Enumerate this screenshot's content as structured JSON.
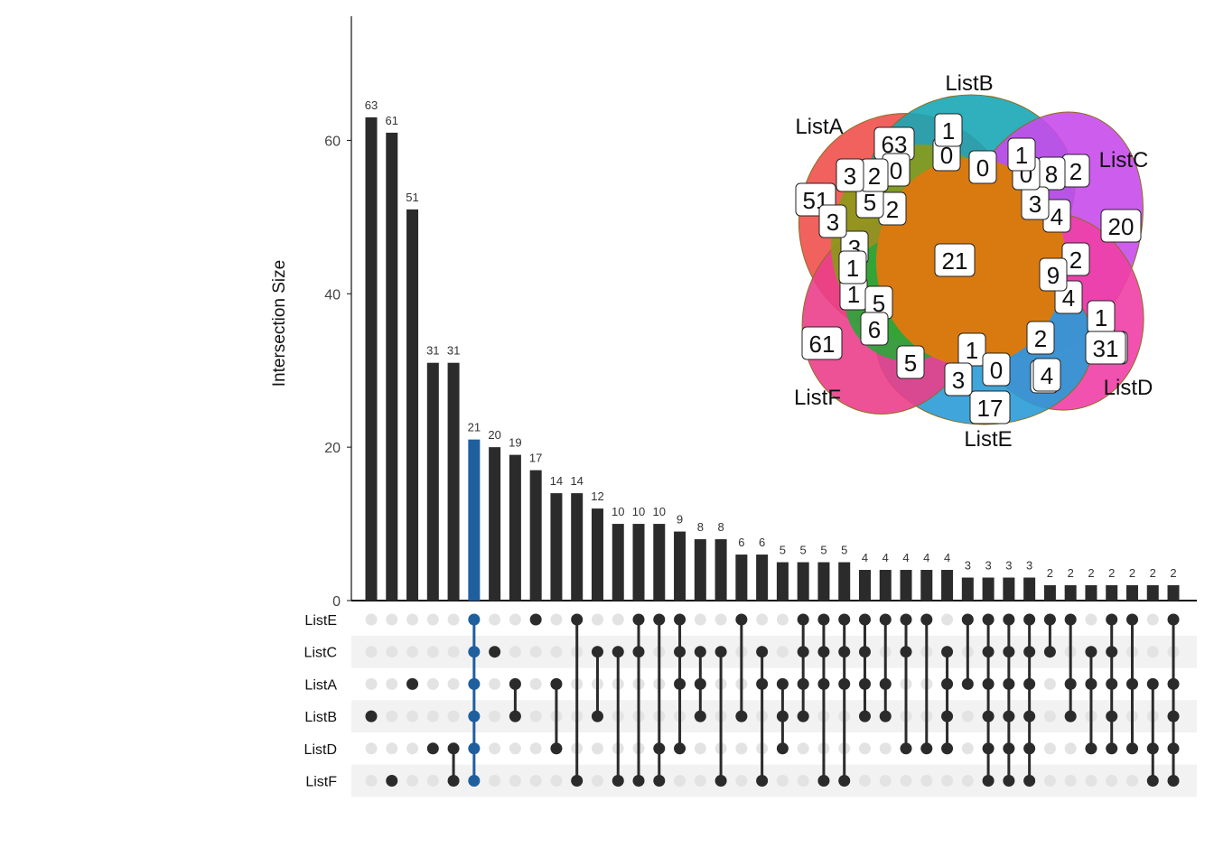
{
  "chart_data": {
    "type": "upset",
    "ylabel": "Intersection Size",
    "ylim": [
      0,
      73
    ],
    "yticks": [
      0,
      20,
      40,
      60
    ],
    "sets": [
      "ListE",
      "ListC",
      "ListA",
      "ListB",
      "ListD",
      "ListF"
    ],
    "highlight_index": 5,
    "colors": {
      "bar": "#2b2b2b",
      "highlight": "#1f5f9e",
      "dot_off": "#e3e3e3",
      "stripe": "#f2f2f2"
    },
    "intersections": [
      {
        "value": 63,
        "members": [
          "ListB"
        ]
      },
      {
        "value": 61,
        "members": [
          "ListF"
        ]
      },
      {
        "value": 51,
        "members": [
          "ListA"
        ]
      },
      {
        "value": 31,
        "members": [
          "ListD"
        ]
      },
      {
        "value": 31,
        "members": [
          "ListD",
          "ListF"
        ]
      },
      {
        "value": 21,
        "members": [
          "ListE",
          "ListC",
          "ListA",
          "ListB",
          "ListD",
          "ListF"
        ]
      },
      {
        "value": 20,
        "members": [
          "ListC"
        ]
      },
      {
        "value": 19,
        "members": [
          "ListA",
          "ListB"
        ]
      },
      {
        "value": 17,
        "members": [
          "ListE"
        ]
      },
      {
        "value": 14,
        "members": [
          "ListA",
          "ListD"
        ]
      },
      {
        "value": 14,
        "members": [
          "ListE",
          "ListF"
        ]
      },
      {
        "value": 12,
        "members": [
          "ListC",
          "ListB"
        ]
      },
      {
        "value": 10,
        "members": [
          "ListC",
          "ListF"
        ]
      },
      {
        "value": 10,
        "members": [
          "ListE",
          "ListC",
          "ListF"
        ]
      },
      {
        "value": 10,
        "members": [
          "ListE",
          "ListD",
          "ListF"
        ]
      },
      {
        "value": 9,
        "members": [
          "ListE",
          "ListC",
          "ListA",
          "ListD"
        ]
      },
      {
        "value": 8,
        "members": [
          "ListC",
          "ListA",
          "ListB"
        ]
      },
      {
        "value": 8,
        "members": [
          "ListC",
          "ListF"
        ]
      },
      {
        "value": 6,
        "members": [
          "ListE",
          "ListB"
        ]
      },
      {
        "value": 6,
        "members": [
          "ListC",
          "ListA",
          "ListF"
        ]
      },
      {
        "value": 5,
        "members": [
          "ListA",
          "ListB",
          "ListD"
        ]
      },
      {
        "value": 5,
        "members": [
          "ListE",
          "ListC",
          "ListA",
          "ListB"
        ]
      },
      {
        "value": 5,
        "members": [
          "ListE",
          "ListC",
          "ListA",
          "ListF"
        ]
      },
      {
        "value": 5,
        "members": [
          "ListE",
          "ListC",
          "ListA",
          "ListF"
        ]
      },
      {
        "value": 4,
        "members": [
          "ListE",
          "ListC",
          "ListA",
          "ListB"
        ]
      },
      {
        "value": 4,
        "members": [
          "ListE",
          "ListA",
          "ListB"
        ]
      },
      {
        "value": 4,
        "members": [
          "ListE",
          "ListC",
          "ListD"
        ]
      },
      {
        "value": 4,
        "members": [
          "ListE",
          "ListD"
        ]
      },
      {
        "value": 4,
        "members": [
          "ListC",
          "ListA",
          "ListB",
          "ListD"
        ]
      },
      {
        "value": 3,
        "members": [
          "ListE",
          "ListA"
        ]
      },
      {
        "value": 3,
        "members": [
          "ListE",
          "ListC",
          "ListA",
          "ListB",
          "ListD",
          "ListF"
        ]
      },
      {
        "value": 3,
        "members": [
          "ListE",
          "ListC",
          "ListA",
          "ListB",
          "ListD",
          "ListF"
        ]
      },
      {
        "value": 3,
        "members": [
          "ListE",
          "ListC",
          "ListA",
          "ListB",
          "ListD",
          "ListF"
        ]
      },
      {
        "value": 2,
        "members": [
          "ListE",
          "ListC"
        ]
      },
      {
        "value": 2,
        "members": [
          "ListE",
          "ListA",
          "ListB"
        ]
      },
      {
        "value": 2,
        "members": [
          "ListC",
          "ListA",
          "ListD"
        ]
      },
      {
        "value": 2,
        "members": [
          "ListE",
          "ListC",
          "ListA",
          "ListB",
          "ListD"
        ]
      },
      {
        "value": 2,
        "members": [
          "ListE",
          "ListA",
          "ListD"
        ]
      },
      {
        "value": 2,
        "members": [
          "ListA",
          "ListD",
          "ListF"
        ]
      },
      {
        "value": 2,
        "members": [
          "ListE",
          "ListA",
          "ListB",
          "ListD",
          "ListF"
        ]
      }
    ],
    "venn": {
      "set_names": [
        "ListA",
        "ListB",
        "ListC",
        "ListD",
        "ListE",
        "ListF"
      ],
      "region_counts": [
        "21",
        "51",
        "63",
        "20",
        "31",
        "17",
        "61",
        "0",
        "0",
        "0",
        "2",
        "3",
        "4",
        "1",
        "5",
        "2",
        "8",
        "3",
        "4",
        "2",
        "2",
        "9",
        "4",
        "1",
        "31",
        "2",
        "1",
        "0",
        "0",
        "4",
        "3",
        "1",
        "5",
        "5",
        "6",
        "1",
        "3",
        "3",
        "1"
      ]
    }
  }
}
